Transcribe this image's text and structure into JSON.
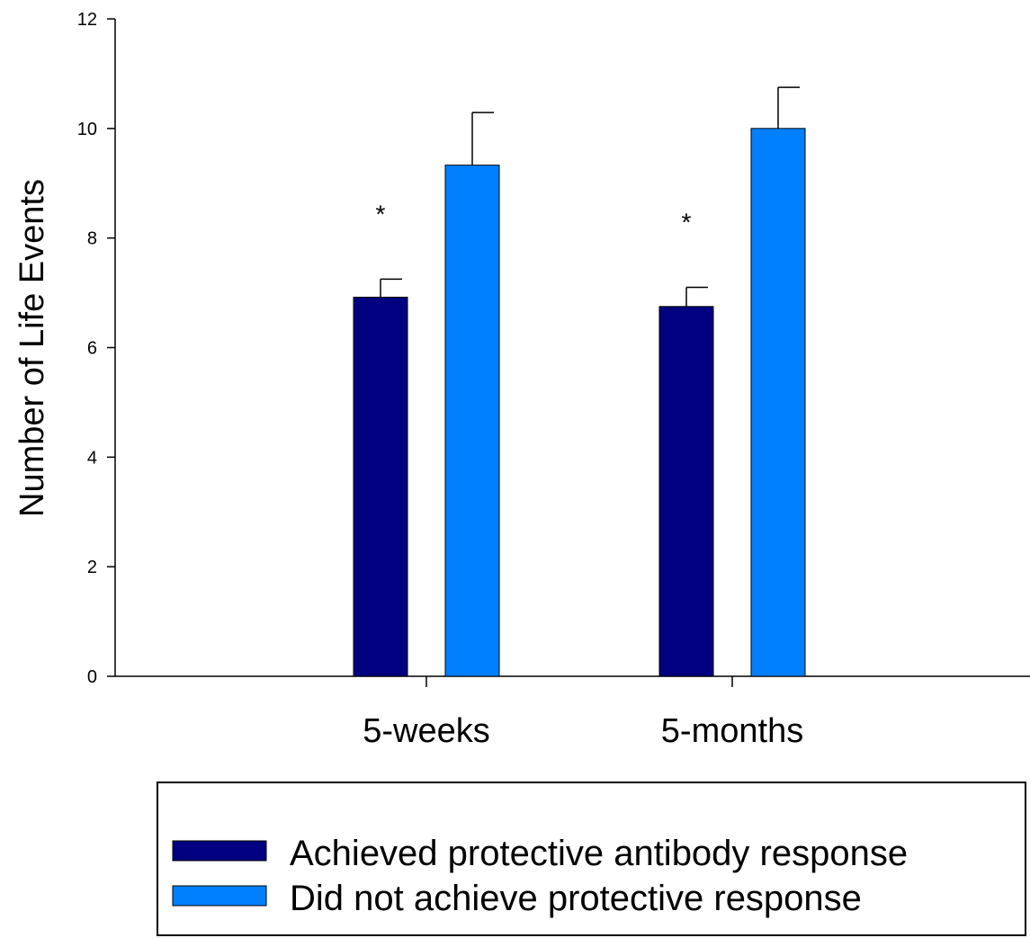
{
  "chart_data": {
    "type": "bar",
    "title": "",
    "xlabel": "",
    "ylabel": "Number of Life Events",
    "ylim": [
      0,
      12
    ],
    "yticks": [
      0,
      2,
      4,
      6,
      8,
      10,
      12
    ],
    "grid": false,
    "legend_position": "bottom",
    "categories": [
      "5-weeks",
      "5-months"
    ],
    "series": [
      {
        "name": "Achieved protective antibody response",
        "color": "#000080",
        "values": [
          6.92,
          6.75
        ],
        "errors": [
          0.33,
          0.35
        ],
        "annotations": [
          "*",
          "*"
        ]
      },
      {
        "name": "Did not achieve protective response",
        "color": "#0080ff",
        "values": [
          9.33,
          10.0
        ],
        "errors": [
          0.96,
          0.75
        ],
        "annotations": [
          "",
          ""
        ]
      }
    ]
  }
}
